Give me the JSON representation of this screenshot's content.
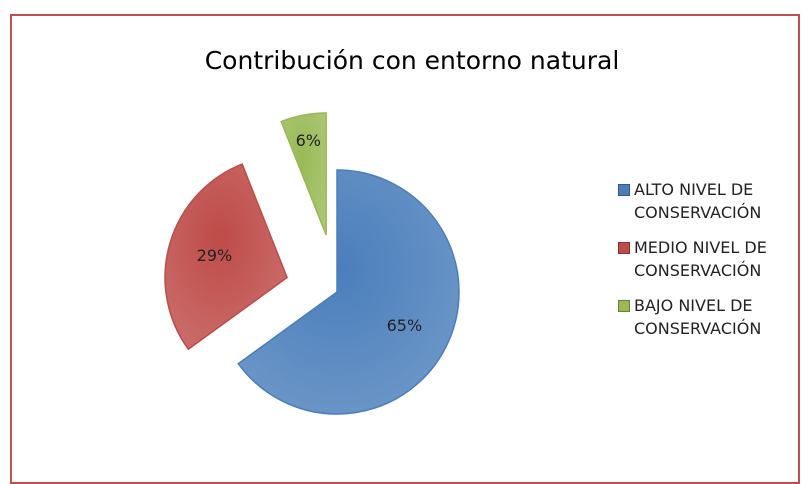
{
  "chart_data": {
    "type": "pie",
    "title": "Contribución con entorno natural",
    "categories": [
      "ALTO NIVEL DE CONSERVACIÓN",
      "MEDIO NIVEL DE CONSERVACIÓN",
      "BAJO NIVEL DE CONSERVACIÓN"
    ],
    "values": [
      65,
      29,
      6
    ],
    "value_labels": [
      "65%",
      "29%",
      "6%"
    ],
    "colors": [
      "#4a7ebb",
      "#be4b48",
      "#98b954"
    ],
    "legend": "right"
  }
}
